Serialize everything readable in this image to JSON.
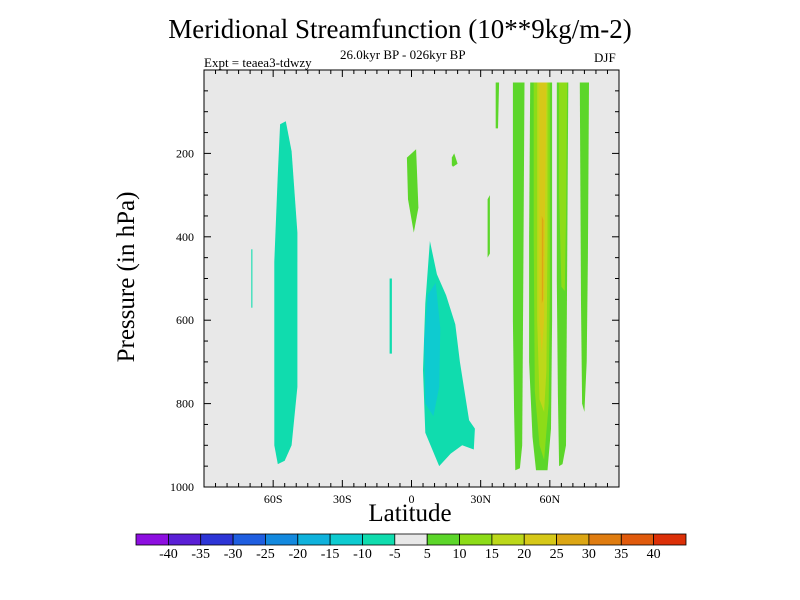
{
  "chart_data": {
    "type": "filled-contour",
    "title": "Meridional Streamfunction (10**9kg/m-2)",
    "subtitle": "26.0kyr BP - 026kyr BP",
    "experiment": "Expt = teaea3-tdwzy",
    "season": "DJF",
    "xlabel": "Latitude",
    "ylabel": "Pressure (in hPa)",
    "xlim": [
      -90,
      90
    ],
    "ylim": [
      1000,
      0
    ],
    "y_inverted": true,
    "xticks": [
      {
        "value": -60,
        "label": "60S"
      },
      {
        "value": -30,
        "label": "30S"
      },
      {
        "value": 0,
        "label": "0"
      },
      {
        "value": 30,
        "label": "30N"
      },
      {
        "value": 60,
        "label": "60N"
      }
    ],
    "yticks": [
      200,
      400,
      600,
      800,
      1000
    ],
    "background_color": "#e8e8e8",
    "colorbar": {
      "labels": [
        "-40",
        "-35",
        "-30",
        "-25",
        "-20",
        "-15",
        "-10",
        "-5",
        "5",
        "10",
        "15",
        "20",
        "25",
        "30",
        "35",
        "40"
      ],
      "colors": [
        "#8d0fe0",
        "#5a1fd6",
        "#2d35d6",
        "#1f5ee0",
        "#1389de",
        "#0fb2dc",
        "#0ecbd0",
        "#10dcae",
        "#e8e8e8",
        "#5cd62a",
        "#8ddc18",
        "#bcd81a",
        "#d6c818",
        "#dca614",
        "#df7c10",
        "#e05a0c",
        "#dc3008"
      ]
    },
    "regions": [
      {
        "name": "sh-negative-cell",
        "level": -7.5,
        "points": [
          [
            -57,
            130
          ],
          [
            -54.5,
            123
          ],
          [
            -52,
            195
          ],
          [
            -49.5,
            390
          ],
          [
            -49.5,
            760
          ],
          [
            -52,
            900
          ],
          [
            -55,
            937
          ],
          [
            -58,
            945
          ],
          [
            -59.5,
            900
          ],
          [
            -59.5,
            460
          ],
          [
            -58,
            250
          ]
        ]
      },
      {
        "name": "sh-negative-sliver",
        "level": -7.5,
        "points": [
          [
            -69.5,
            430
          ],
          [
            -69,
            430
          ],
          [
            -69,
            570
          ],
          [
            -69.5,
            570
          ]
        ]
      },
      {
        "name": "tropical-sliver",
        "level": -7.5,
        "points": [
          [
            -9.5,
            500
          ],
          [
            -8.5,
            500
          ],
          [
            -8.5,
            680
          ],
          [
            -9.5,
            680
          ]
        ]
      },
      {
        "name": "tropical-negative-cell",
        "level": -7.5,
        "points": [
          [
            8,
            410
          ],
          [
            11,
            490
          ],
          [
            15,
            540
          ],
          [
            19,
            610
          ],
          [
            21,
            700
          ],
          [
            25,
            840
          ],
          [
            27.5,
            860
          ],
          [
            27,
            910
          ],
          [
            22,
            900
          ],
          [
            17,
            920
          ],
          [
            12,
            950
          ],
          [
            6,
            870
          ],
          [
            5,
            720
          ],
          [
            6,
            560
          ]
        ]
      },
      {
        "name": "tropical-negative-core",
        "level": -12.5,
        "points": [
          [
            10.5,
            510
          ],
          [
            12.5,
            620
          ],
          [
            12,
            760
          ],
          [
            9.5,
            830
          ],
          [
            6,
            800
          ],
          [
            5.5,
            650
          ],
          [
            7,
            540
          ]
        ]
      },
      {
        "name": "small-positive-patch",
        "level": 7.5,
        "points": [
          [
            -2,
            210
          ],
          [
            2,
            190
          ],
          [
            3,
            330
          ],
          [
            1,
            390
          ],
          [
            -1.5,
            310
          ]
        ]
      },
      {
        "name": "small-positive-dot",
        "level": 7.5,
        "points": [
          [
            17.5,
            210
          ],
          [
            18.5,
            200
          ],
          [
            20,
            225
          ],
          [
            18,
            232
          ],
          [
            17.5,
            228
          ]
        ]
      },
      {
        "name": "nh-thin-band",
        "level": 7.5,
        "points": [
          [
            36.5,
            30
          ],
          [
            38,
            30
          ],
          [
            37.5,
            140
          ],
          [
            36.5,
            140
          ]
        ]
      },
      {
        "name": "nh-thin-band2",
        "level": 7.5,
        "points": [
          [
            33,
            310
          ],
          [
            34,
            300
          ],
          [
            34,
            440
          ],
          [
            33,
            450
          ]
        ]
      },
      {
        "name": "nh-main-band-outer",
        "level": 7.5,
        "points": [
          [
            44,
            30
          ],
          [
            49,
            30
          ],
          [
            48.5,
            500
          ],
          [
            48,
            900
          ],
          [
            47,
            955
          ],
          [
            45,
            960
          ],
          [
            44.5,
            820
          ],
          [
            44,
            600
          ]
        ]
      },
      {
        "name": "nh-main-cell-outer",
        "level": 7.5,
        "points": [
          [
            51.5,
            30
          ],
          [
            61,
            30
          ],
          [
            61,
            600
          ],
          [
            60.5,
            860
          ],
          [
            59,
            960
          ],
          [
            54,
            960
          ],
          [
            52.5,
            880
          ],
          [
            51,
            700
          ],
          [
            51,
            400
          ]
        ]
      },
      {
        "name": "nh-main-cell-mid",
        "level": 12.5,
        "points": [
          [
            53,
            30
          ],
          [
            60,
            30
          ],
          [
            60,
            540
          ],
          [
            59.5,
            800
          ],
          [
            57.5,
            935
          ],
          [
            55.5,
            900
          ],
          [
            53.5,
            770
          ],
          [
            53,
            400
          ]
        ]
      },
      {
        "name": "nh-main-cell-inner",
        "level": 17.5,
        "points": [
          [
            54.5,
            30
          ],
          [
            59,
            30
          ],
          [
            59,
            420
          ],
          [
            58.5,
            720
          ],
          [
            57.5,
            820
          ],
          [
            55.5,
            790
          ],
          [
            54.5,
            600
          ]
        ]
      },
      {
        "name": "nh-main-cell-core",
        "level": 22.5,
        "points": [
          [
            55.5,
            30
          ],
          [
            58.5,
            30
          ],
          [
            58,
            300
          ],
          [
            57.5,
            600
          ],
          [
            56.5,
            680
          ],
          [
            55.5,
            600
          ]
        ]
      },
      {
        "name": "nh-main-cell-max",
        "level": 27.5,
        "points": [
          [
            56.5,
            350
          ],
          [
            57.2,
            360
          ],
          [
            57.1,
            550
          ],
          [
            56.5,
            560
          ]
        ]
      },
      {
        "name": "nh-secondary-band-outer",
        "level": 7.5,
        "points": [
          [
            63,
            30
          ],
          [
            68,
            30
          ],
          [
            67.5,
            500
          ],
          [
            67,
            900
          ],
          [
            65.5,
            945
          ],
          [
            64,
            950
          ],
          [
            63.5,
            780
          ],
          [
            63,
            500
          ]
        ]
      },
      {
        "name": "nh-secondary-band-inner",
        "level": 12.5,
        "points": [
          [
            64,
            30
          ],
          [
            67.5,
            30
          ],
          [
            67,
            360
          ],
          [
            66.5,
            530
          ],
          [
            65,
            520
          ],
          [
            64,
            300
          ]
        ]
      },
      {
        "name": "nh-polar-band",
        "level": 7.5,
        "points": [
          [
            73,
            30
          ],
          [
            77,
            30
          ],
          [
            76.5,
            450
          ],
          [
            76,
            700
          ],
          [
            75,
            820
          ],
          [
            74,
            800
          ],
          [
            73.5,
            560
          ]
        ]
      }
    ]
  }
}
